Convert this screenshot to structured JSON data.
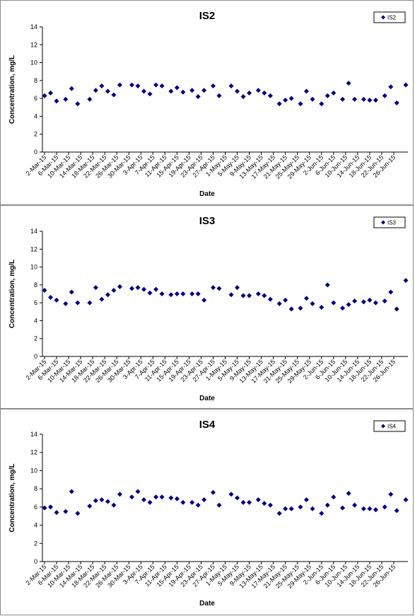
{
  "chart_data": [
    {
      "type": "scatter",
      "title": "IS2",
      "xlabel": "Date",
      "ylabel": "Concentration, mg/L",
      "ylim": [
        0,
        14
      ],
      "ytick_step": 2,
      "grid": false,
      "legend": "top-right",
      "x_ticks": [
        "2-Mar-15",
        "6-Mar-15",
        "10-Mar-15",
        "14-Mar-15",
        "18-Mar-15",
        "22-Mar-15",
        "26-Mar-15",
        "30-Mar-15",
        "3-Apr-15",
        "7-Apr-15",
        "11-Apr-15",
        "15-Apr-15",
        "19-Apr-15",
        "23-Apr-15",
        "27-Apr-15",
        "1-May-15",
        "5-May-15",
        "9-May-15",
        "13-May-15",
        "17-May-15",
        "21-May-15",
        "25-May-15",
        "29-May-15",
        "2-Jun-15",
        "6-Jun-15",
        "10-Jun-15",
        "14-Jun-15",
        "18-Jun-15",
        "22-Jun-15",
        "26-Jun-15"
      ],
      "series": [
        {
          "name": "IS2",
          "color": "#000080",
          "x": [
            "2-Mar-15",
            "4-Mar-15",
            "6-Mar-15",
            "9-Mar-15",
            "11-Mar-15",
            "13-Mar-15",
            "17-Mar-15",
            "19-Mar-15",
            "21-Mar-15",
            "23-Mar-15",
            "25-Mar-15",
            "27-Mar-15",
            "31-Mar-15",
            "2-Apr-15",
            "4-Apr-15",
            "6-Apr-15",
            "8-Apr-15",
            "10-Apr-15",
            "13-Apr-15",
            "15-Apr-15",
            "17-Apr-15",
            "20-Apr-15",
            "22-Apr-15",
            "24-Apr-15",
            "27-Apr-15",
            "29-Apr-15",
            "3-May-15",
            "5-May-15",
            "7-May-15",
            "9-May-15",
            "12-May-15",
            "14-May-15",
            "16-May-15",
            "19-May-15",
            "21-May-15",
            "23-May-15",
            "26-May-15",
            "28-May-15",
            "30-May-15",
            "2-Jun-15",
            "4-Jun-15",
            "6-Jun-15",
            "9-Jun-15",
            "11-Jun-15",
            "13-Jun-15",
            "16-Jun-15",
            "18-Jun-15",
            "20-Jun-15",
            "23-Jun-15",
            "25-Jun-15",
            "27-Jun-15",
            "30-Jun-15"
          ],
          "y": [
            6.3,
            6.6,
            5.7,
            5.9,
            7.1,
            5.4,
            5.9,
            6.9,
            7.4,
            6.8,
            6.4,
            7.5,
            7.5,
            7.4,
            6.8,
            6.5,
            7.5,
            7.4,
            6.8,
            7.2,
            6.7,
            6.9,
            6.2,
            6.9,
            7.4,
            6.3,
            7.4,
            6.8,
            6.2,
            6.6,
            6.9,
            6.6,
            6.3,
            5.4,
            5.8,
            6.0,
            5.4,
            6.8,
            5.9,
            5.4,
            6.3,
            6.6,
            5.9,
            7.7,
            5.9,
            5.9,
            5.8,
            5.8,
            6.3,
            7.3,
            5.5,
            7.5
          ]
        }
      ]
    },
    {
      "type": "scatter",
      "title": "IS3",
      "xlabel": "Date",
      "ylabel": "Concentration, mg/L",
      "ylim": [
        0,
        14
      ],
      "ytick_step": 2,
      "grid": false,
      "legend": "top-right",
      "x_ticks": [
        "2-Mar-15",
        "6-Mar-15",
        "10-Mar-15",
        "14-Mar-15",
        "18-Mar-15",
        "22-Mar-15",
        "26-Mar-15",
        "30-Mar-15",
        "3-Apr-15",
        "7-Apr-15",
        "11-Apr-15",
        "15-Apr-15",
        "19-Apr-15",
        "23-Apr-15",
        "27-Apr-15",
        "1-May-15",
        "5-May-15",
        "9-May-15",
        "13-May-15",
        "17-May-15",
        "21-May-15",
        "25-May-15",
        "29-May-15",
        "2-Jun-15",
        "6-Jun-15",
        "10-Jun-15",
        "14-Jun-15",
        "18-Jun-15",
        "22-Jun-15",
        "26-Jun-15"
      ],
      "series": [
        {
          "name": "IS3",
          "color": "#000080",
          "x": [
            "2-Mar-15",
            "4-Mar-15",
            "6-Mar-15",
            "9-Mar-15",
            "11-Mar-15",
            "13-Mar-15",
            "17-Mar-15",
            "19-Mar-15",
            "21-Mar-15",
            "23-Mar-15",
            "25-Mar-15",
            "27-Mar-15",
            "31-Mar-15",
            "2-Apr-15",
            "4-Apr-15",
            "6-Apr-15",
            "8-Apr-15",
            "10-Apr-15",
            "13-Apr-15",
            "15-Apr-15",
            "17-Apr-15",
            "20-Apr-15",
            "22-Apr-15",
            "24-Apr-15",
            "27-Apr-15",
            "29-Apr-15",
            "3-May-15",
            "5-May-15",
            "7-May-15",
            "9-May-15",
            "12-May-15",
            "14-May-15",
            "16-May-15",
            "19-May-15",
            "21-May-15",
            "23-May-15",
            "26-May-15",
            "28-May-15",
            "30-May-15",
            "2-Jun-15",
            "4-Jun-15",
            "6-Jun-15",
            "9-Jun-15",
            "11-Jun-15",
            "13-Jun-15",
            "16-Jun-15",
            "18-Jun-15",
            "20-Jun-15",
            "23-Jun-15",
            "25-Jun-15",
            "27-Jun-15",
            "30-Jun-15"
          ],
          "y": [
            7.4,
            6.6,
            6.3,
            5.9,
            7.2,
            6.0,
            6.0,
            7.7,
            6.4,
            6.9,
            7.4,
            7.8,
            7.6,
            7.7,
            7.5,
            7.1,
            7.5,
            7.0,
            6.9,
            7.0,
            7.0,
            7.0,
            7.0,
            6.3,
            7.7,
            7.6,
            6.9,
            7.7,
            6.8,
            6.8,
            7.0,
            6.8,
            6.4,
            5.9,
            6.3,
            5.3,
            5.4,
            6.5,
            5.9,
            5.5,
            8.0,
            6.0,
            5.4,
            5.8,
            6.2,
            6.1,
            6.3,
            6.0,
            6.2,
            7.2,
            5.3,
            8.5
          ]
        }
      ]
    },
    {
      "type": "scatter",
      "title": "IS4",
      "xlabel": "Date",
      "ylabel": "Concentration, mg/L",
      "ylim": [
        0,
        14
      ],
      "ytick_step": 2,
      "grid": false,
      "legend": "top-right",
      "x_ticks": [
        "2-Mar-15",
        "6-Mar-15",
        "10-Mar-15",
        "14-Mar-15",
        "18-Mar-15",
        "22-Mar-15",
        "26-Mar-15",
        "30-Mar-15",
        "3-Apr-15",
        "7-Apr-15",
        "11-Apr-15",
        "15-Apr-15",
        "19-Apr-15",
        "23-Apr-15",
        "27-Apr-15",
        "1-May-15",
        "5-May-15",
        "9-May-15",
        "13-May-15",
        "17-May-15",
        "21-May-15",
        "25-May-15",
        "29-May-15",
        "2-Jun-15",
        "6-Jun-15",
        "10-Jun-15",
        "14-Jun-15",
        "18-Jun-15",
        "22-Jun-15",
        "26-Jun-15"
      ],
      "series": [
        {
          "name": "IS4",
          "color": "#000080",
          "x": [
            "2-Mar-15",
            "4-Mar-15",
            "6-Mar-15",
            "9-Mar-15",
            "11-Mar-15",
            "13-Mar-15",
            "17-Mar-15",
            "19-Mar-15",
            "21-Mar-15",
            "23-Mar-15",
            "25-Mar-15",
            "27-Mar-15",
            "31-Mar-15",
            "2-Apr-15",
            "4-Apr-15",
            "6-Apr-15",
            "8-Apr-15",
            "10-Apr-15",
            "13-Apr-15",
            "15-Apr-15",
            "17-Apr-15",
            "20-Apr-15",
            "22-Apr-15",
            "24-Apr-15",
            "27-Apr-15",
            "29-Apr-15",
            "3-May-15",
            "5-May-15",
            "7-May-15",
            "9-May-15",
            "12-May-15",
            "14-May-15",
            "16-May-15",
            "19-May-15",
            "21-May-15",
            "23-May-15",
            "26-May-15",
            "28-May-15",
            "30-May-15",
            "2-Jun-15",
            "4-Jun-15",
            "6-Jun-15",
            "9-Jun-15",
            "11-Jun-15",
            "13-Jun-15",
            "16-Jun-15",
            "18-Jun-15",
            "20-Jun-15",
            "23-Jun-15",
            "25-Jun-15",
            "27-Jun-15",
            "30-Jun-15"
          ],
          "y": [
            5.9,
            6.0,
            5.4,
            5.5,
            7.7,
            5.3,
            6.1,
            6.7,
            6.8,
            6.6,
            6.2,
            7.4,
            7.1,
            7.7,
            6.8,
            6.5,
            7.1,
            7.1,
            7.0,
            6.9,
            6.5,
            6.5,
            6.2,
            6.8,
            7.6,
            6.2,
            7.4,
            7.0,
            6.5,
            6.5,
            6.8,
            6.4,
            6.2,
            5.3,
            5.8,
            5.8,
            6.0,
            6.8,
            5.8,
            5.3,
            6.2,
            7.1,
            5.9,
            7.5,
            6.2,
            5.8,
            5.8,
            5.7,
            6.0,
            7.4,
            5.6,
            6.8
          ]
        }
      ]
    }
  ]
}
